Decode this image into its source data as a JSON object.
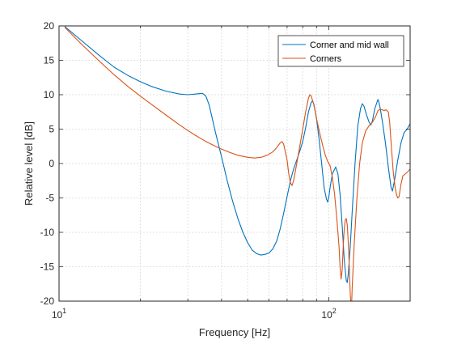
{
  "chart_data": {
    "type": "line",
    "xscale": "log",
    "xlabel": "Frequency [Hz]",
    "ylabel": "Relative level [dB]",
    "xlim": [
      10,
      200
    ],
    "ylim": [
      -20,
      20
    ],
    "grid": "on",
    "legend_position": "top-right",
    "x_ticks": [
      {
        "value": 10,
        "base": "10",
        "exp": "1"
      },
      {
        "value": 100,
        "base": "10",
        "exp": "2"
      }
    ],
    "y_ticks": [
      -20,
      -15,
      -10,
      -5,
      0,
      5,
      10,
      15,
      20
    ],
    "y_tick_labels": [
      "-20",
      "-15",
      "-10",
      "-5",
      "0",
      "5",
      "10",
      "15",
      "20"
    ],
    "series": [
      {
        "name": "Corner and mid wall",
        "color": "#0072BD",
        "points": [
          [
            10.5,
            19.9
          ],
          [
            12,
            18
          ],
          [
            14,
            15.8
          ],
          [
            16,
            14
          ],
          [
            18,
            12.8
          ],
          [
            20,
            11.9
          ],
          [
            22,
            11.2
          ],
          [
            25,
            10.5
          ],
          [
            28,
            10.1
          ],
          [
            30,
            10
          ],
          [
            32,
            10.1
          ],
          [
            34,
            10.2
          ],
          [
            35,
            9.8
          ],
          [
            36,
            8.5
          ],
          [
            38,
            4.5
          ],
          [
            40,
            1
          ],
          [
            42,
            -2.5
          ],
          [
            44,
            -5.5
          ],
          [
            46,
            -8
          ],
          [
            48,
            -10
          ],
          [
            50,
            -11.5
          ],
          [
            52,
            -12.6
          ],
          [
            54,
            -13.1
          ],
          [
            56,
            -13.3
          ],
          [
            58,
            -13.2
          ],
          [
            60,
            -13
          ],
          [
            62,
            -12.4
          ],
          [
            64,
            -11.3
          ],
          [
            66,
            -9.5
          ],
          [
            68,
            -7.2
          ],
          [
            70,
            -4.8
          ],
          [
            72,
            -2.5
          ],
          [
            74,
            -0.8
          ],
          [
            76,
            0.5
          ],
          [
            78,
            1.8
          ],
          [
            80,
            3.2
          ],
          [
            82,
            5.2
          ],
          [
            84,
            7.5
          ],
          [
            86,
            8.9
          ],
          [
            87,
            9.1
          ],
          [
            88,
            8.6
          ],
          [
            90,
            6.5
          ],
          [
            92,
            3.5
          ],
          [
            94,
            0
          ],
          [
            96,
            -3.5
          ],
          [
            98,
            -5.2
          ],
          [
            99,
            -5.6
          ],
          [
            100,
            -4.8
          ],
          [
            101,
            -3.5
          ],
          [
            103,
            -1.5
          ],
          [
            106,
            -0.5
          ],
          [
            108,
            -1.5
          ],
          [
            110,
            -4.5
          ],
          [
            112,
            -9
          ],
          [
            114,
            -14
          ],
          [
            116,
            -17
          ],
          [
            117,
            -17.3
          ],
          [
            118,
            -16
          ],
          [
            120,
            -12
          ],
          [
            122,
            -7
          ],
          [
            125,
            0
          ],
          [
            128,
            5.5
          ],
          [
            131,
            8
          ],
          [
            133,
            8.7
          ],
          [
            135,
            8.3
          ],
          [
            138,
            7
          ],
          [
            141,
            6
          ],
          [
            143,
            5.6
          ],
          [
            145,
            6.2
          ],
          [
            148,
            8
          ],
          [
            151,
            9
          ],
          [
            152,
            9.3
          ],
          [
            153,
            9
          ],
          [
            155,
            8
          ],
          [
            158,
            6
          ],
          [
            162,
            3
          ],
          [
            166,
            -0.5
          ],
          [
            170,
            -3.5
          ],
          [
            172,
            -4
          ],
          [
            175,
            -2.5
          ],
          [
            180,
            0.5
          ],
          [
            185,
            3
          ],
          [
            190,
            4.5
          ],
          [
            195,
            5
          ],
          [
            200,
            5.8
          ]
        ]
      },
      {
        "name": "Corners",
        "color": "#D95319",
        "points": [
          [
            10.5,
            19.8
          ],
          [
            12,
            17.5
          ],
          [
            14,
            15
          ],
          [
            16,
            12.9
          ],
          [
            18,
            11.2
          ],
          [
            20,
            9.8
          ],
          [
            22,
            8.6
          ],
          [
            25,
            7
          ],
          [
            28,
            5.6
          ],
          [
            30,
            4.8
          ],
          [
            32,
            4.1
          ],
          [
            35,
            3.2
          ],
          [
            38,
            2.5
          ],
          [
            40,
            2.1
          ],
          [
            43,
            1.6
          ],
          [
            46,
            1.2
          ],
          [
            50,
            0.9
          ],
          [
            53,
            0.8
          ],
          [
            56,
            0.9
          ],
          [
            59,
            1.2
          ],
          [
            62,
            1.7
          ],
          [
            64,
            2.3
          ],
          [
            66,
            3
          ],
          [
            67,
            3.2
          ],
          [
            68,
            2.8
          ],
          [
            70,
            0.5
          ],
          [
            71,
            -1.5
          ],
          [
            72,
            -2.8
          ],
          [
            73,
            -3.2
          ],
          [
            74,
            -2.5
          ],
          [
            76,
            0
          ],
          [
            78,
            2.5
          ],
          [
            80,
            5
          ],
          [
            82,
            7.5
          ],
          [
            84,
            9.5
          ],
          [
            85,
            10
          ],
          [
            86,
            9.8
          ],
          [
            88,
            8.5
          ],
          [
            90,
            6.5
          ],
          [
            93,
            4
          ],
          [
            95,
            2.5
          ],
          [
            97,
            1.2
          ],
          [
            99,
            0.3
          ],
          [
            101,
            -0.3
          ],
          [
            103,
            -2
          ],
          [
            105,
            -4.5
          ],
          [
            107,
            -8
          ],
          [
            109,
            -12
          ],
          [
            110,
            -15
          ],
          [
            111,
            -16.8
          ],
          [
            112,
            -15.5
          ],
          [
            113,
            -12
          ],
          [
            114,
            -9.5
          ],
          [
            115,
            -8.2
          ],
          [
            116,
            -8
          ],
          [
            117,
            -9
          ],
          [
            118,
            -11.5
          ],
          [
            119,
            -15
          ],
          [
            120,
            -19
          ],
          [
            120.5,
            -20
          ],
          [
            121.5,
            -20
          ],
          [
            122,
            -18
          ],
          [
            124,
            -12
          ],
          [
            127,
            -5
          ],
          [
            130,
            0
          ],
          [
            133,
            3
          ],
          [
            137,
            4.8
          ],
          [
            141,
            5.5
          ],
          [
            145,
            6
          ],
          [
            149,
            6.8
          ],
          [
            152,
            7.7
          ],
          [
            155,
            7.9
          ],
          [
            158,
            7.8
          ],
          [
            160,
            7.7
          ],
          [
            163,
            7.8
          ],
          [
            166,
            7.5
          ],
          [
            168,
            6
          ],
          [
            170,
            3
          ],
          [
            173,
            -1
          ],
          [
            176,
            -3.5
          ],
          [
            178,
            -4.5
          ],
          [
            180,
            -5
          ],
          [
            182,
            -4.8
          ],
          [
            185,
            -3
          ],
          [
            188,
            -1.8
          ],
          [
            192,
            -1.5
          ],
          [
            196,
            -1.2
          ],
          [
            200,
            -0.8
          ]
        ]
      }
    ]
  }
}
